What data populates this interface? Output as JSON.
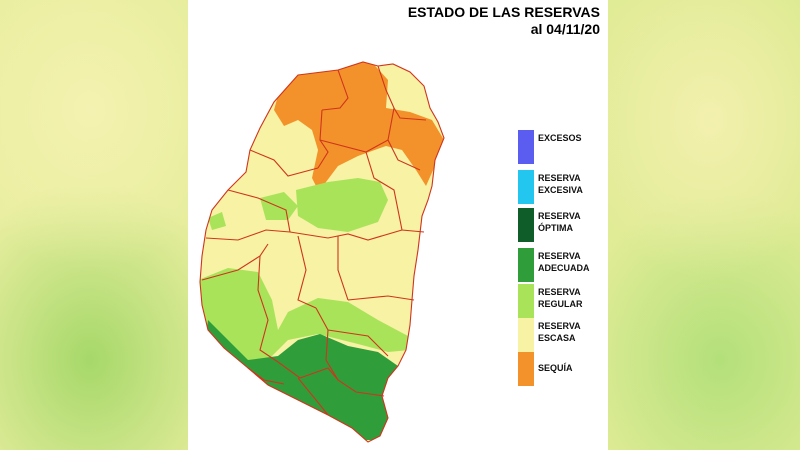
{
  "header": {
    "title": "ESTADO DE LAS RESERVAS",
    "date": "al 04/11/20"
  },
  "legend": {
    "items": [
      {
        "line1": "EXCESOS",
        "line2": "",
        "color": "#5a5df0"
      },
      {
        "line1": "RESERVA",
        "line2": "EXCESIVA",
        "color": "#22c6ef"
      },
      {
        "line1": "RESERVA",
        "line2": "ÓPTIMA",
        "color": "#0f5e2a"
      },
      {
        "line1": "RESERVA",
        "line2": "ADECUADA",
        "color": "#2f9e3a"
      },
      {
        "line1": "RESERVA",
        "line2": "REGULAR",
        "color": "#a8e35a"
      },
      {
        "line1": "RESERVA",
        "line2": "ESCASA",
        "color": "#f7f2a4"
      },
      {
        "line1": "SEQUÍA",
        "line2": "",
        "color": "#f3922a"
      }
    ]
  },
  "map_colors": {
    "border": "#d0341d",
    "sequia": "#f3922a",
    "escasa": "#f7f2a4",
    "regular": "#a8e35a",
    "adecuada": "#2f9e3a"
  }
}
